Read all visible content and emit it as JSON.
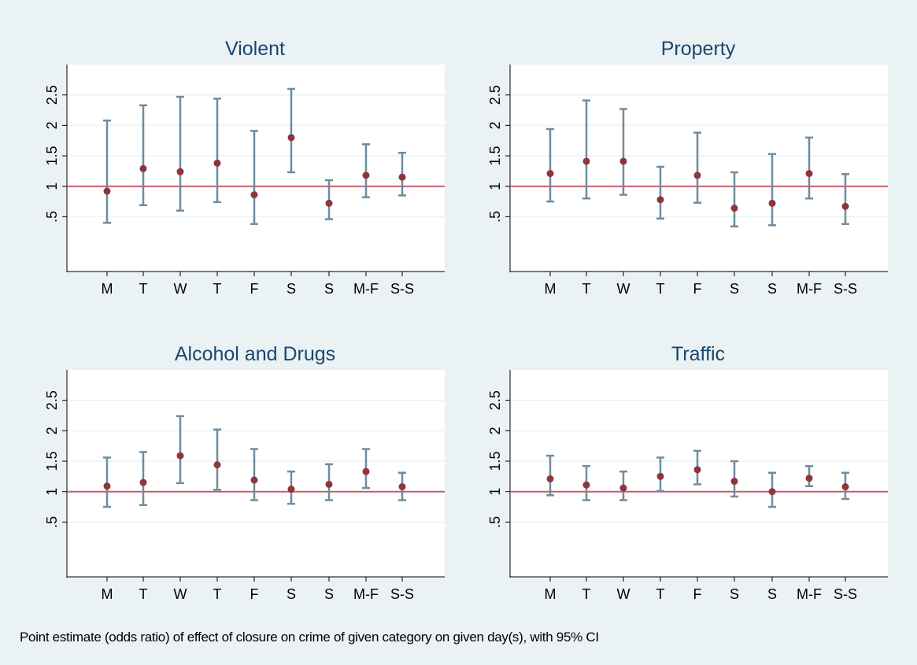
{
  "caption": "Point estimate (odds ratio) of effect of closure on crime of given category on given day(s), with 95% CI",
  "colors": {
    "background": "#eaf2f3",
    "plot_area": "#ffffff",
    "gridline": "#eaf2f3",
    "ci_bar": "#6e8ca0",
    "point": "#90353b",
    "reference_line": "#c75d6a",
    "title": "#1a476f"
  },
  "chart_data": [
    {
      "type": "scatter",
      "title": "Violent",
      "categories": [
        "M",
        "T",
        "W",
        "T",
        "F",
        "S",
        "S",
        "M-F",
        "S-S"
      ],
      "estimate": [
        0.92,
        1.29,
        1.24,
        1.38,
        0.86,
        1.8,
        0.72,
        1.18,
        1.15
      ],
      "ci_low": [
        0.4,
        0.69,
        0.6,
        0.74,
        0.38,
        1.23,
        0.46,
        0.82,
        0.85
      ],
      "ci_high": [
        2.08,
        2.33,
        2.47,
        2.44,
        1.91,
        2.6,
        1.1,
        1.69,
        1.55
      ],
      "yticks": [
        ".5",
        "1",
        "1.5",
        "2",
        "2.5"
      ],
      "ylim": [
        -0.4,
        3.0
      ],
      "reference_y": 1,
      "grid": true
    },
    {
      "type": "scatter",
      "title": "Property",
      "categories": [
        "M",
        "T",
        "W",
        "T",
        "F",
        "S",
        "S",
        "M-F",
        "S-S"
      ],
      "estimate": [
        1.21,
        1.41,
        1.41,
        0.78,
        1.18,
        0.64,
        0.72,
        1.21,
        0.67
      ],
      "ci_low": [
        0.75,
        0.8,
        0.86,
        0.47,
        0.73,
        0.34,
        0.36,
        0.8,
        0.38
      ],
      "ci_high": [
        1.94,
        2.41,
        2.27,
        1.32,
        1.88,
        1.23,
        1.53,
        1.8,
        1.2
      ],
      "yticks": [
        ".5",
        "1",
        "1.5",
        "2",
        "2.5"
      ],
      "ylim": [
        -0.4,
        3.0
      ],
      "reference_y": 1,
      "grid": true
    },
    {
      "type": "scatter",
      "title": "Alcohol and Drugs",
      "categories": [
        "M",
        "T",
        "W",
        "T",
        "F",
        "S",
        "S",
        "M-F",
        "S-S"
      ],
      "estimate": [
        1.09,
        1.15,
        1.59,
        1.44,
        1.19,
        1.04,
        1.12,
        1.33,
        1.08
      ],
      "ci_low": [
        0.75,
        0.78,
        1.14,
        1.03,
        0.86,
        0.8,
        0.86,
        1.06,
        0.86
      ],
      "ci_high": [
        1.56,
        1.65,
        2.24,
        2.02,
        1.7,
        1.33,
        1.45,
        1.7,
        1.31
      ],
      "yticks": [
        ".5",
        "1",
        "1.5",
        "2",
        "2.5"
      ],
      "ylim": [
        -0.4,
        3.0
      ],
      "reference_y": 1,
      "grid": true
    },
    {
      "type": "scatter",
      "title": "Traffic",
      "categories": [
        "M",
        "T",
        "W",
        "T",
        "F",
        "S",
        "S",
        "M-F",
        "S-S"
      ],
      "estimate": [
        1.21,
        1.11,
        1.06,
        1.25,
        1.36,
        1.17,
        1.0,
        1.22,
        1.08
      ],
      "ci_low": [
        0.94,
        0.86,
        0.86,
        1.01,
        1.12,
        0.92,
        0.75,
        1.09,
        0.88
      ],
      "ci_high": [
        1.59,
        1.42,
        1.33,
        1.56,
        1.67,
        1.5,
        1.31,
        1.42,
        1.31
      ],
      "yticks": [
        ".5",
        "1",
        "1.5",
        "2",
        "2.5"
      ],
      "ylim": [
        -0.4,
        3.0
      ],
      "reference_y": 1,
      "grid": true
    }
  ]
}
